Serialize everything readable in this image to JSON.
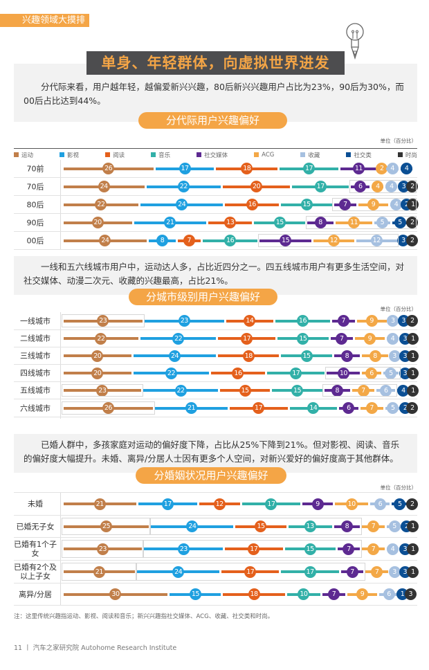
{
  "header": {
    "section_tag": "兴趣领域大摸排",
    "headline": "单身、年轻群体，向虚拟世界进发",
    "bulb_icon": "lightbulb-pen-icon"
  },
  "colors": {
    "sport": "#c17f4a",
    "film": "#1fa0e0",
    "reading": "#e4601c",
    "music": "#32b0a8",
    "social_media": "#5d2a91",
    "acg": "#f3a847",
    "collect": "#a6c0e0",
    "social": "#0b4f94",
    "fashion": "#333333",
    "accent": "#f4a546",
    "headline_bg": "#4d4d4f"
  },
  "legend": [
    {
      "key": "sport",
      "label": "运动",
      "color": "#c17f4a"
    },
    {
      "key": "film",
      "label": "影视",
      "color": "#1fa0e0"
    },
    {
      "key": "reading",
      "label": "阅读",
      "color": "#e4601c"
    },
    {
      "key": "music",
      "label": "音乐",
      "color": "#32b0a8"
    },
    {
      "key": "social_media",
      "label": "社交媒体",
      "color": "#5d2a91"
    },
    {
      "key": "acg",
      "label": "ACG",
      "color": "#f3a847"
    },
    {
      "key": "collect",
      "label": "收藏",
      "color": "#a6c0e0"
    },
    {
      "key": "social",
      "label": "社交类",
      "color": "#0b4f94"
    },
    {
      "key": "fashion",
      "label": "时尚",
      "color": "#333333"
    }
  ],
  "sections": [
    {
      "text": "分代际来看，用户越年轻，越偏爱新兴兴趣，80后新兴兴趣用户占比为23%，90后为30%，而00后占比达到44%。",
      "title": "分代际用户兴趣偏好",
      "unit": "单位（百分比）"
    },
    {
      "text": "一线和五六线城市用户中，运动达人多，占比近四分之一。四五线城市用户有更多生活空间，对社交媒体、动漫二次元、收藏的兴趣最高，占比21%。",
      "title": "分城市级别用户兴趣偏好",
      "unit": "单位（百分比）"
    },
    {
      "text": "已婚人群中，多孩家庭对运动的偏好度下降，占比从25%下降到21%。但对影视、阅读、音乐的偏好度大幅提升。未婚、离异/分居人士因有更多个人空间，对新兴爱好的偏好度高于其他群体。",
      "title": "分婚姻状况用户兴趣偏好",
      "unit": "单位（百分比）"
    }
  ],
  "chart_data": [
    {
      "type": "bar",
      "subtype": "stacked-horizontal-100",
      "title": "分代际用户兴趣偏好",
      "unit": "单位（百分比）",
      "categories": [
        "70前",
        "70后",
        "80后",
        "90后",
        "00后"
      ],
      "series": [
        {
          "name": "运动",
          "values": [
            26,
            24,
            22,
            20,
            24
          ]
        },
        {
          "name": "影视",
          "values": [
            17,
            22,
            24,
            21,
            8
          ]
        },
        {
          "name": "阅读",
          "values": [
            18,
            20,
            16,
            13,
            7
          ]
        },
        {
          "name": "音乐",
          "values": [
            17,
            17,
            15,
            15,
            16
          ]
        },
        {
          "name": "社交媒体",
          "values": [
            11,
            6,
            7,
            8,
            15
          ]
        },
        {
          "name": "ACG",
          "values": [
            2,
            4,
            9,
            11,
            12
          ]
        },
        {
          "name": "收藏",
          "values": [
            4,
            4,
            4,
            5,
            12
          ]
        },
        {
          "name": "社交类",
          "values": [
            4,
            3,
            2,
            5,
            3
          ]
        },
        {
          "name": "时尚",
          "values": [
            0,
            2,
            1,
            2,
            2
          ]
        }
      ],
      "highlights": [
        {
          "row": 1,
          "from": 4,
          "to": 8
        },
        {
          "row": 2,
          "from": 4,
          "to": 8
        },
        {
          "row": 3,
          "from": 4,
          "to": 8
        },
        {
          "row": 4,
          "from": 4,
          "to": 6
        }
      ]
    },
    {
      "type": "bar",
      "subtype": "stacked-horizontal-100",
      "title": "分城市级别用户兴趣偏好",
      "unit": "单位（百分比）",
      "categories": [
        "一线城市",
        "二线城市",
        "三线城市",
        "四线城市",
        "五线城市",
        "六线城市"
      ],
      "series": [
        {
          "name": "运动",
          "values": [
            23,
            22,
            20,
            20,
            23,
            26
          ]
        },
        {
          "name": "影视",
          "values": [
            23,
            22,
            24,
            22,
            22,
            21
          ]
        },
        {
          "name": "阅读",
          "values": [
            14,
            17,
            18,
            16,
            15,
            17
          ]
        },
        {
          "name": "音乐",
          "values": [
            16,
            15,
            15,
            17,
            15,
            14
          ]
        },
        {
          "name": "社交媒体",
          "values": [
            7,
            7,
            8,
            10,
            8,
            6
          ]
        },
        {
          "name": "ACG",
          "values": [
            9,
            9,
            8,
            6,
            7,
            7
          ]
        },
        {
          "name": "收藏",
          "values": [
            3,
            4,
            3,
            5,
            6,
            5
          ]
        },
        {
          "name": "社交类",
          "values": [
            3,
            3,
            3,
            3,
            4,
            2
          ]
        },
        {
          "name": "时尚",
          "values": [
            2,
            1,
            1,
            1,
            1,
            2
          ]
        }
      ],
      "highlights": [
        {
          "row": 0,
          "from": 0,
          "to": 0
        },
        {
          "row": 3,
          "from": 4,
          "to": 6
        },
        {
          "row": 4,
          "from": 0,
          "to": 0
        },
        {
          "row": 4,
          "from": 4,
          "to": 6
        },
        {
          "row": 5,
          "from": 0,
          "to": 0
        }
      ]
    },
    {
      "type": "bar",
      "subtype": "stacked-horizontal-100",
      "title": "分婚姻状况用户兴趣偏好",
      "unit": "单位（百分比）",
      "categories": [
        "未婚",
        "已婚无子女",
        "已婚有1个子女",
        "已婚有2个及以上子女",
        "离异/分居"
      ],
      "series": [
        {
          "name": "运动",
          "values": [
            21,
            25,
            23,
            21,
            30
          ]
        },
        {
          "name": "影视",
          "values": [
            17,
            24,
            23,
            24,
            15
          ]
        },
        {
          "name": "阅读",
          "values": [
            12,
            15,
            17,
            17,
            18
          ]
        },
        {
          "name": "音乐",
          "values": [
            17,
            13,
            15,
            17,
            10
          ]
        },
        {
          "name": "社交媒体",
          "values": [
            9,
            8,
            7,
            7,
            7
          ]
        },
        {
          "name": "ACG",
          "values": [
            10,
            7,
            7,
            7,
            9
          ]
        },
        {
          "name": "收藏",
          "values": [
            6,
            5,
            4,
            3,
            6
          ]
        },
        {
          "name": "社交类",
          "values": [
            5,
            2,
            3,
            3,
            1
          ]
        },
        {
          "name": "时尚",
          "values": [
            2,
            1,
            1,
            1,
            3
          ]
        }
      ],
      "highlights": [
        {
          "row": 1,
          "from": 0,
          "to": 0
        },
        {
          "row": 1,
          "from": 1,
          "to": 4
        },
        {
          "row": 2,
          "from": 0,
          "to": 0
        },
        {
          "row": 2,
          "from": 1,
          "to": 4
        },
        {
          "row": 3,
          "from": 0,
          "to": 0
        },
        {
          "row": 3,
          "from": 1,
          "to": 4
        }
      ]
    }
  ],
  "footnote": "注：这里传统兴趣指运动、影视、阅读和音乐；新兴兴趣指社交媒体、ACG、收藏、社交类和时尚。",
  "footer": "11 丨 汽车之家研究院  Autohome Research Institute"
}
